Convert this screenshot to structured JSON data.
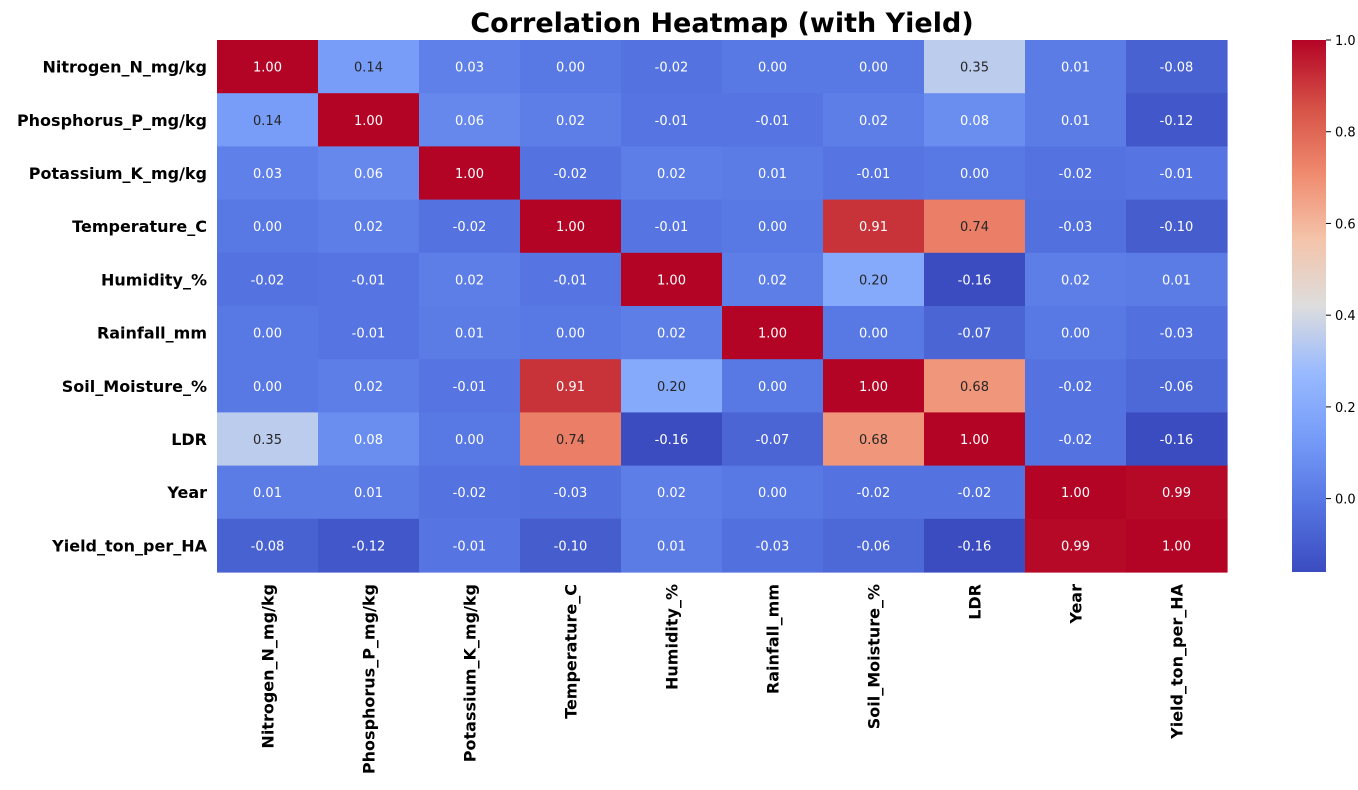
{
  "chart_data": {
    "type": "heatmap",
    "title": "Correlation Heatmap (with Yield)",
    "labels": [
      "Nitrogen_N_mg/kg",
      "Phosphorus_P_mg/kg",
      "Potassium_K_mg/kg",
      "Temperature_C",
      "Humidity_%",
      "Rainfall_mm",
      "Soil_Moisture_%",
      "LDR",
      "Year",
      "Yield_ton_per_HA"
    ],
    "values": [
      [
        1.0,
        0.14,
        0.03,
        0.0,
        -0.02,
        0.0,
        -0.0,
        0.35,
        0.01,
        -0.08
      ],
      [
        0.14,
        1.0,
        0.06,
        0.02,
        -0.01,
        -0.01,
        0.02,
        0.08,
        0.01,
        -0.12
      ],
      [
        0.03,
        0.06,
        1.0,
        -0.02,
        0.02,
        0.01,
        -0.01,
        -0.0,
        -0.02,
        -0.01
      ],
      [
        0.0,
        0.02,
        -0.02,
        1.0,
        -0.01,
        -0.0,
        0.91,
        0.74,
        -0.03,
        -0.1
      ],
      [
        -0.02,
        -0.01,
        0.02,
        -0.01,
        1.0,
        0.02,
        0.2,
        -0.16,
        0.02,
        0.01
      ],
      [
        0.0,
        -0.01,
        0.01,
        -0.0,
        0.02,
        1.0,
        0.0,
        -0.07,
        0.0,
        -0.03
      ],
      [
        -0.0,
        0.02,
        -0.01,
        0.91,
        0.2,
        0.0,
        1.0,
        0.68,
        -0.02,
        -0.06
      ],
      [
        0.35,
        0.08,
        -0.0,
        0.74,
        -0.16,
        -0.07,
        0.68,
        1.0,
        -0.02,
        -0.16
      ],
      [
        0.01,
        0.01,
        -0.02,
        -0.03,
        0.02,
        0.0,
        -0.02,
        -0.02,
        1.0,
        0.99
      ],
      [
        -0.08,
        -0.12,
        -0.01,
        -0.1,
        0.01,
        -0.03,
        -0.06,
        -0.16,
        0.99,
        1.0
      ]
    ],
    "value_format": "0.00",
    "colormap": "coolwarm",
    "colorbar": {
      "range": [
        -0.16,
        1.0
      ],
      "ticks": [
        0.0,
        0.2,
        0.4,
        0.6,
        0.8,
        1.0
      ],
      "tick_labels": [
        "0.0",
        "0.2",
        "0.4",
        "0.6",
        "0.8",
        "1.0"
      ]
    }
  }
}
